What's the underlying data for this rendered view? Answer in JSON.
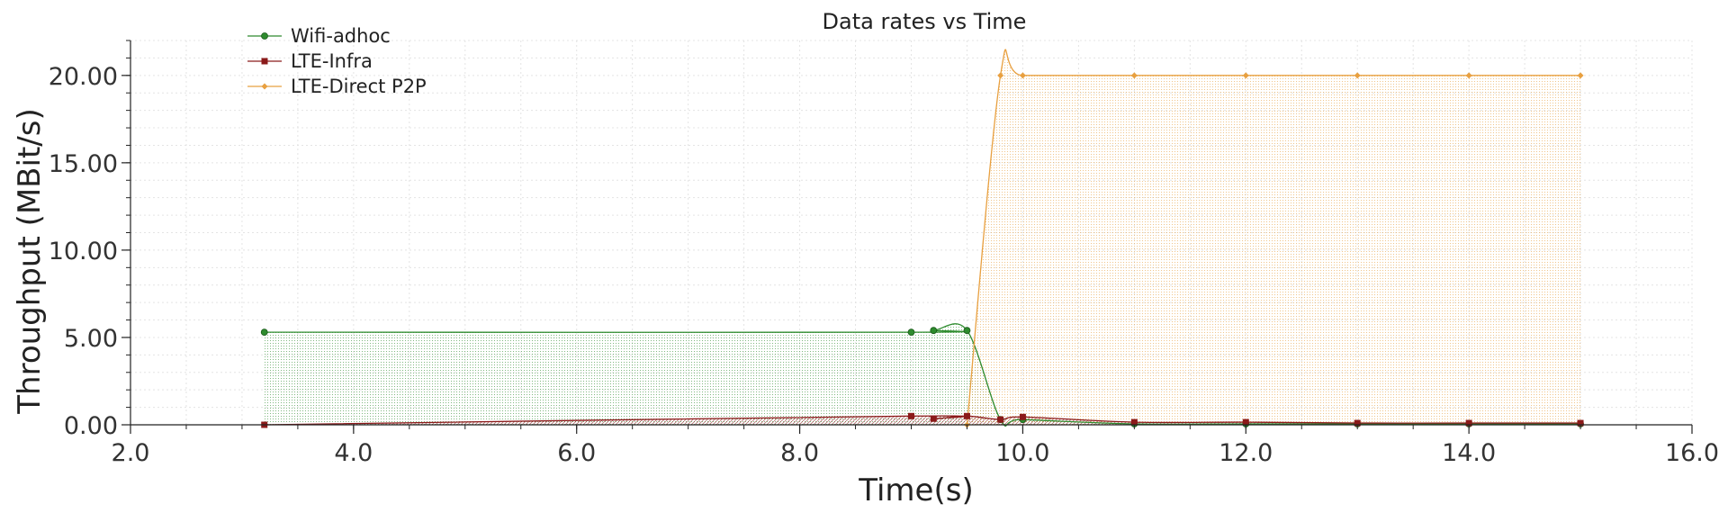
{
  "chart_data": {
    "type": "area",
    "title": "Data rates vs Time",
    "xlabel": "Time(s)",
    "ylabel": "Throughput (MBit/s)",
    "xlim": [
      2.0,
      16.0
    ],
    "ylim": [
      0,
      22
    ],
    "x_ticks": [
      2.0,
      4.0,
      6.0,
      8.0,
      10.0,
      12.0,
      14.0,
      16.0
    ],
    "y_ticks": [
      0,
      5,
      10,
      15,
      20
    ],
    "x_tick_labels": [
      "2.0",
      "4.0",
      "6.0",
      "8.0",
      "10.0",
      "12.0",
      "14.0",
      "16.0"
    ],
    "y_tick_labels": [
      "0.00",
      "5.00",
      "10.00",
      "15.00",
      "20.00"
    ],
    "grid": true,
    "legend": "top-left",
    "series": [
      {
        "name": "Wifi-adhoc",
        "color": "#2e8b2e",
        "marker": "circle",
        "x": [
          3.2,
          9.0,
          9.2,
          9.5,
          9.8,
          10.0,
          11.0,
          12.0,
          13.0,
          14.0,
          15.0
        ],
        "y": [
          5.3,
          5.3,
          5.4,
          5.4,
          0.3,
          0.3,
          0.05,
          0.05,
          0.05,
          0.05,
          0.05
        ]
      },
      {
        "name": "LTE-Infra",
        "color": "#8b1a1a",
        "marker": "square",
        "x": [
          3.2,
          9.0,
          9.2,
          9.5,
          9.8,
          10.0,
          11.0,
          12.0,
          13.0,
          14.0,
          15.0
        ],
        "y": [
          0.0,
          0.5,
          0.35,
          0.5,
          0.3,
          0.45,
          0.15,
          0.15,
          0.1,
          0.1,
          0.1
        ]
      },
      {
        "name": "LTE-Direct P2P",
        "color": "#e8a040",
        "marker": "diamond",
        "x": [
          9.5,
          9.8,
          10.0,
          11.0,
          12.0,
          13.0,
          14.0,
          15.0
        ],
        "y": [
          0.0,
          20.0,
          20.0,
          20.0,
          20.0,
          20.0,
          20.0,
          20.0
        ]
      }
    ]
  }
}
